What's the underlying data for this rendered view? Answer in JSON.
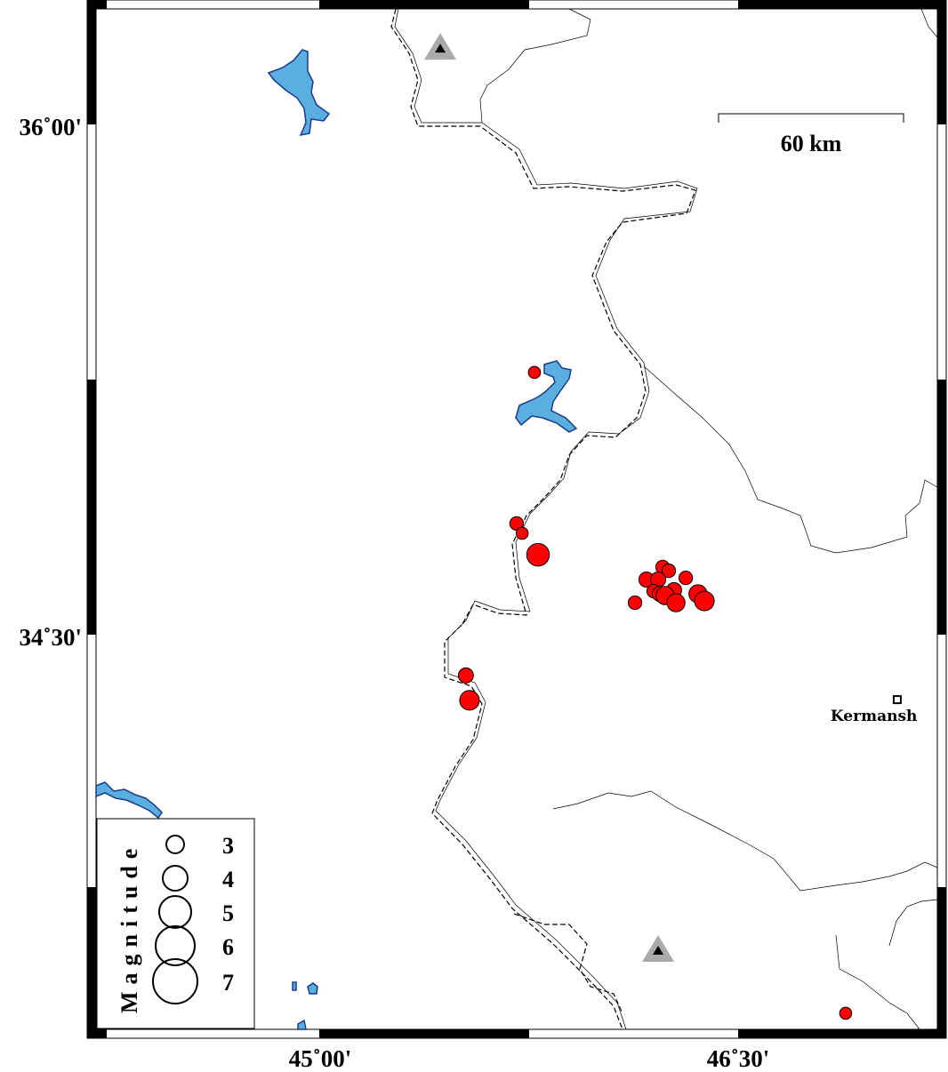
{
  "map": {
    "extent": {
      "lon": [
        44.2,
        47.2
      ],
      "lat": [
        33.34,
        36.34
      ]
    },
    "axis_labels": {
      "lat": [
        {
          "value": 36.0,
          "label": "36˚00'"
        },
        {
          "value": 34.5,
          "label": "34˚30'"
        }
      ],
      "lon": [
        {
          "value": 45.0,
          "label": "45˚00'"
        },
        {
          "value": 46.5,
          "label": "46˚30'"
        }
      ]
    },
    "scale_bar": {
      "label": "60 km"
    },
    "colors": {
      "event": "#ff0000",
      "water": "#5aafe0",
      "water_outline": "#1a3a8a",
      "station": "#aaaaaa"
    },
    "city": {
      "name": "Kermansh",
      "lon": 47.071,
      "lat": 34.309
    },
    "stations": [
      {
        "lon": 45.431,
        "lat": 36.227
      },
      {
        "lon": 46.213,
        "lat": 33.575
      }
    ],
    "events": [
      {
        "lon": 45.769,
        "lat": 35.271,
        "mag": 2.5
      },
      {
        "lon": 45.705,
        "lat": 34.827,
        "mag": 2.75
      },
      {
        "lon": 45.725,
        "lat": 34.798,
        "mag": 2.5
      },
      {
        "lon": 45.782,
        "lat": 34.735,
        "mag": 4.25
      },
      {
        "lon": 45.523,
        "lat": 34.38,
        "mag": 3.0
      },
      {
        "lon": 45.536,
        "lat": 34.307,
        "mag": 3.75
      },
      {
        "lon": 46.886,
        "lat": 33.387,
        "mag": 2.5
      },
      {
        "lon": 46.13,
        "lat": 34.594,
        "mag": 2.75
      },
      {
        "lon": 46.171,
        "lat": 34.662,
        "mag": 3.0
      },
      {
        "lon": 46.229,
        "lat": 34.699,
        "mag": 2.75
      },
      {
        "lon": 46.251,
        "lat": 34.688,
        "mag": 2.75
      },
      {
        "lon": 46.213,
        "lat": 34.662,
        "mag": 3.0
      },
      {
        "lon": 46.197,
        "lat": 34.628,
        "mag": 2.75
      },
      {
        "lon": 46.219,
        "lat": 34.62,
        "mag": 3.0
      },
      {
        "lon": 46.27,
        "lat": 34.631,
        "mag": 3.0
      },
      {
        "lon": 46.312,
        "lat": 34.667,
        "mag": 2.75
      },
      {
        "lon": 46.238,
        "lat": 34.615,
        "mag": 3.5
      },
      {
        "lon": 46.277,
        "lat": 34.594,
        "mag": 3.5
      },
      {
        "lon": 46.356,
        "lat": 34.62,
        "mag": 3.5
      },
      {
        "lon": 46.379,
        "lat": 34.599,
        "mag": 3.75
      }
    ],
    "legend": {
      "title": "Magnitude",
      "magnitudes": [
        {
          "mag": 3,
          "label": "3"
        },
        {
          "mag": 4,
          "label": "4"
        },
        {
          "mag": 5,
          "label": "5"
        },
        {
          "mag": 6,
          "label": "6"
        },
        {
          "mag": 7,
          "label": "7"
        }
      ]
    }
  }
}
